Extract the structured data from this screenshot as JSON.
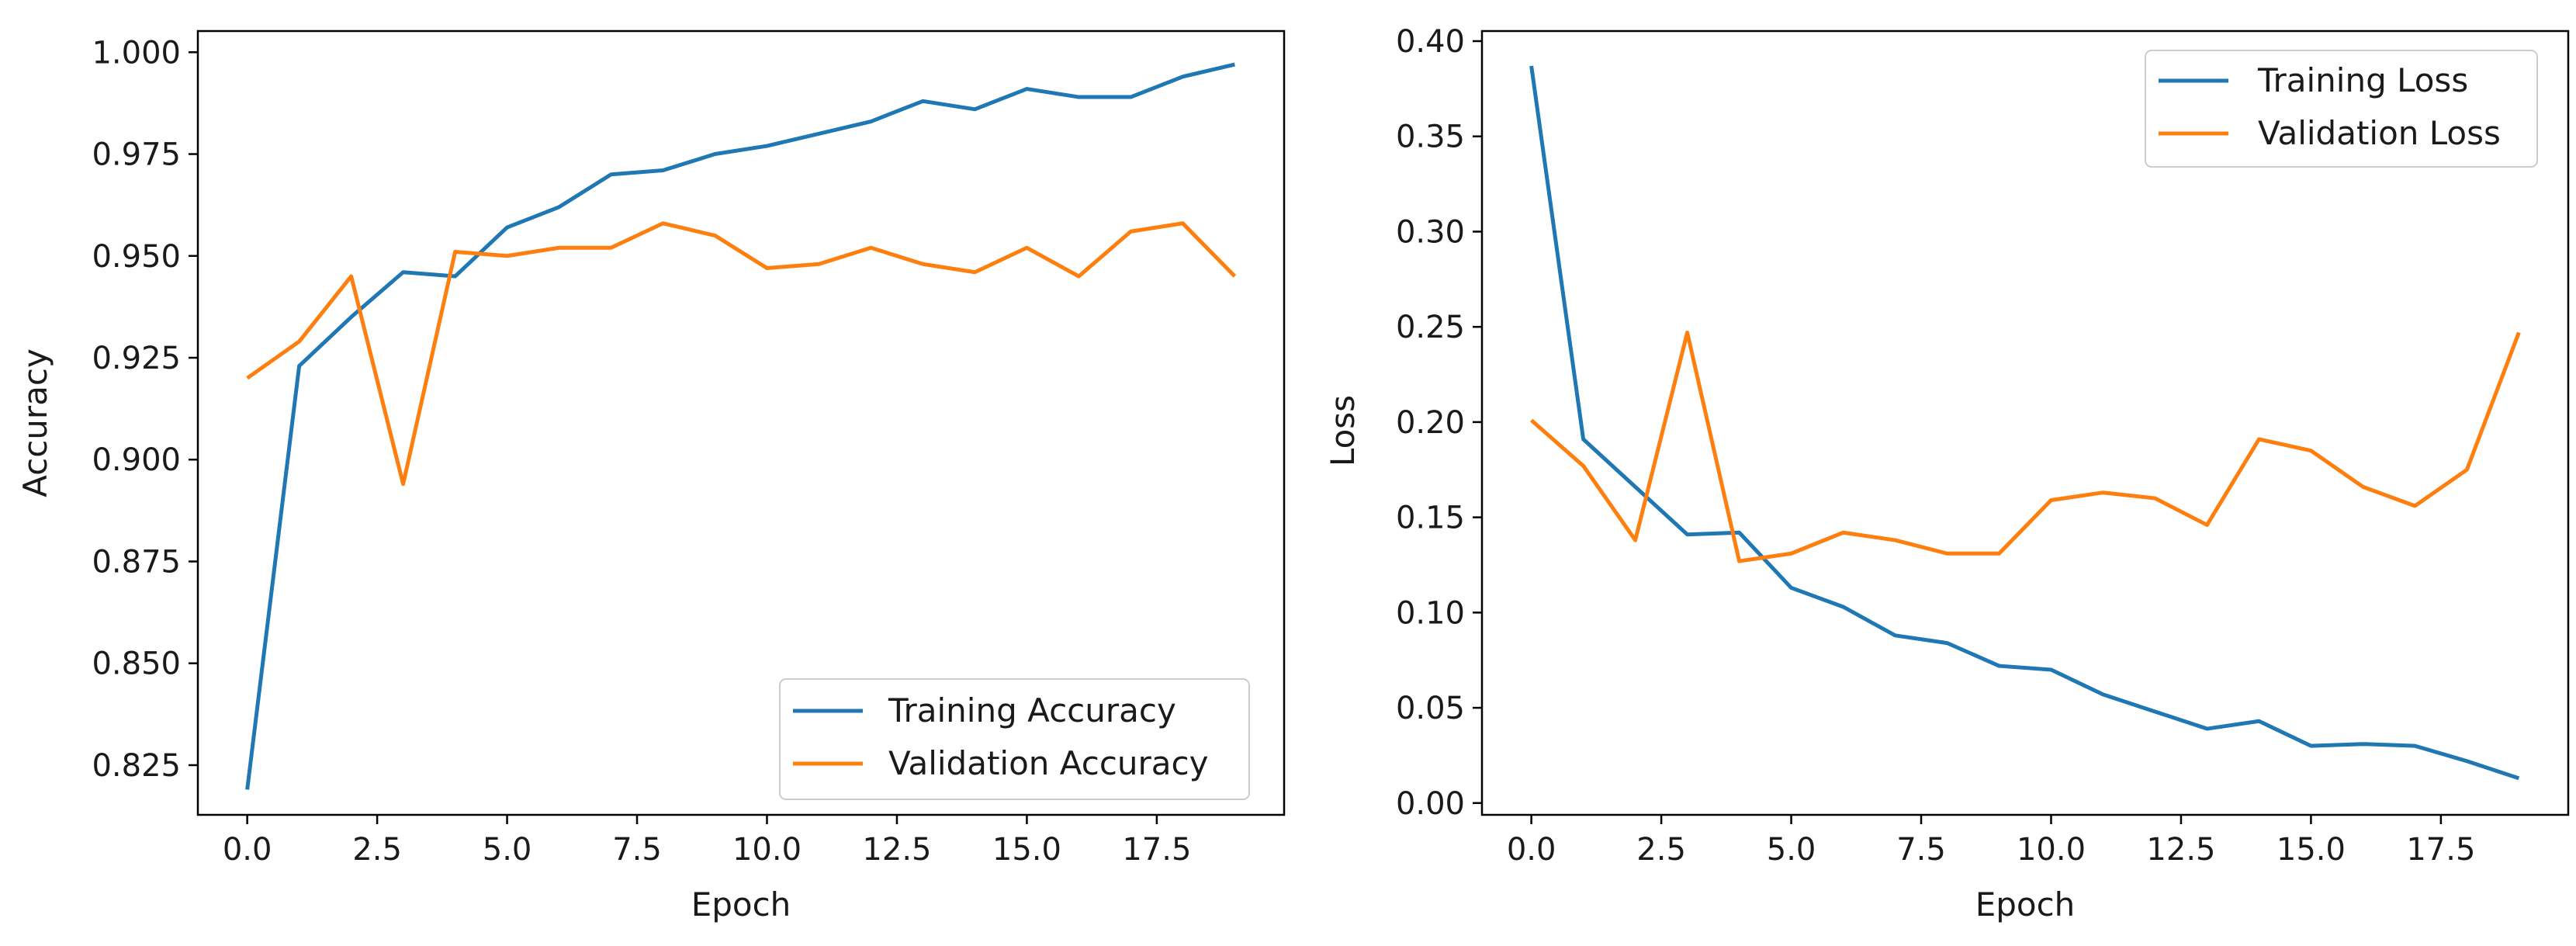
{
  "chart_data": [
    {
      "type": "line",
      "title": "",
      "xlabel": "Epoch",
      "ylabel": "Accuracy",
      "xlim": [
        -0.95,
        19.95
      ],
      "ylim": [
        0.8128,
        1.0052
      ],
      "xticks": [
        0,
        2.5,
        5,
        7.5,
        10,
        12.5,
        15,
        17.5
      ],
      "xtick_labels": [
        "0.0",
        "2.5",
        "5.0",
        "7.5",
        "10.0",
        "12.5",
        "15.0",
        "17.5"
      ],
      "yticks": [
        0.825,
        0.85,
        0.875,
        0.9,
        0.925,
        0.95,
        0.975,
        1.0
      ],
      "ytick_labels": [
        "0.825",
        "0.850",
        "0.875",
        "0.900",
        "0.925",
        "0.950",
        "0.975",
        "1.000"
      ],
      "legend_position": "lower-right",
      "x": [
        0,
        1,
        2,
        3,
        4,
        5,
        6,
        7,
        8,
        9,
        10,
        11,
        12,
        13,
        14,
        15,
        16,
        17,
        18,
        19
      ],
      "series": [
        {
          "name": "Training Accuracy",
          "color": "#1f77b4",
          "values": [
            0.819,
            0.923,
            0.935,
            0.946,
            0.945,
            0.957,
            0.962,
            0.97,
            0.971,
            0.975,
            0.977,
            0.98,
            0.983,
            0.988,
            0.986,
            0.991,
            0.989,
            0.989,
            0.994,
            0.997
          ]
        },
        {
          "name": "Validation Accuracy",
          "color": "#ff7f0e",
          "values": [
            0.92,
            0.929,
            0.945,
            0.894,
            0.951,
            0.95,
            0.952,
            0.952,
            0.958,
            0.955,
            0.947,
            0.948,
            0.952,
            0.948,
            0.946,
            0.952,
            0.945,
            0.956,
            0.958,
            0.945
          ]
        }
      ]
    },
    {
      "type": "line",
      "title": "",
      "xlabel": "Epoch",
      "ylabel": "Loss",
      "xlim": [
        -0.95,
        19.95
      ],
      "ylim": [
        -0.0062,
        0.4053
      ],
      "xticks": [
        0,
        2.5,
        5,
        7.5,
        10,
        12.5,
        15,
        17.5
      ],
      "xtick_labels": [
        "0.0",
        "2.5",
        "5.0",
        "7.5",
        "10.0",
        "12.5",
        "15.0",
        "17.5"
      ],
      "yticks": [
        0,
        0.05,
        0.1,
        0.15,
        0.2,
        0.25,
        0.3,
        0.35,
        0.4
      ],
      "ytick_labels": [
        "0.00",
        "0.05",
        "0.10",
        "0.15",
        "0.20",
        "0.25",
        "0.30",
        "0.35",
        "0.40"
      ],
      "legend_position": "upper-right",
      "x": [
        0,
        1,
        2,
        3,
        4,
        5,
        6,
        7,
        8,
        9,
        10,
        11,
        12,
        13,
        14,
        15,
        16,
        17,
        18,
        19
      ],
      "series": [
        {
          "name": "Training Loss",
          "color": "#1f77b4",
          "values": [
            0.387,
            0.191,
            0.166,
            0.141,
            0.142,
            0.113,
            0.103,
            0.088,
            0.084,
            0.072,
            0.07,
            0.057,
            0.048,
            0.039,
            0.043,
            0.03,
            0.031,
            0.03,
            0.022,
            0.013
          ]
        },
        {
          "name": "Validation Loss",
          "color": "#ff7f0e",
          "values": [
            0.201,
            0.177,
            0.138,
            0.247,
            0.127,
            0.131,
            0.142,
            0.138,
            0.131,
            0.131,
            0.159,
            0.163,
            0.16,
            0.146,
            0.191,
            0.185,
            0.166,
            0.156,
            0.175,
            0.247
          ]
        }
      ]
    }
  ]
}
